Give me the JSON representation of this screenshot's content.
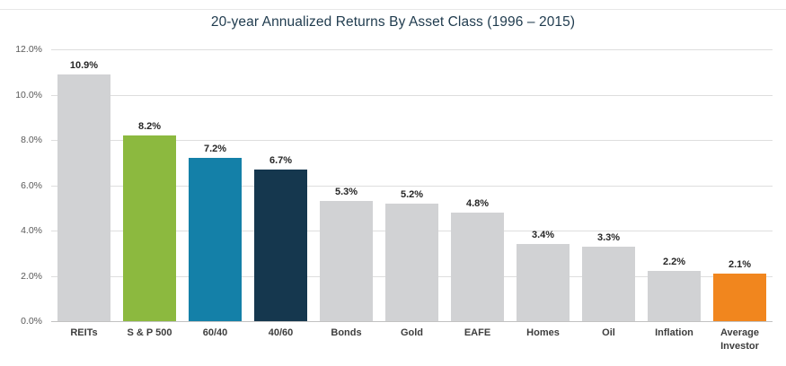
{
  "chart_data": {
    "type": "bar",
    "title": "20-year Annualized Returns By Asset Class (1996 – 2015)",
    "categories": [
      "REITs",
      "S & P 500",
      "60/40",
      "40/60",
      "Bonds",
      "Gold",
      "EAFE",
      "Homes",
      "Oil",
      "Inflation",
      "Average Investor"
    ],
    "values": [
      10.9,
      8.2,
      7.2,
      6.7,
      5.3,
      5.2,
      4.8,
      3.4,
      3.3,
      2.2,
      2.1
    ],
    "value_labels": [
      "10.9%",
      "8.2%",
      "7.2%",
      "6.7%",
      "5.3%",
      "5.2%",
      "4.8%",
      "3.4%",
      "3.3%",
      "2.2%",
      "2.1%"
    ],
    "bar_color_names": [
      "gray",
      "green",
      "blue",
      "navy",
      "gray",
      "gray",
      "gray",
      "gray",
      "gray",
      "gray",
      "orange"
    ],
    "xlabel": "",
    "ylabel": "",
    "ylim": [
      0,
      12
    ],
    "ytick_values": [
      0,
      2,
      4,
      6,
      8,
      10,
      12
    ],
    "ytick_labels": [
      "0.0%",
      "2.0%",
      "4.0%",
      "6.0%",
      "8.0%",
      "10.0%",
      "12.0%"
    ],
    "grid": true,
    "legend": "none"
  },
  "palette": {
    "gray": "#d1d2d4",
    "green": "#8cb93f",
    "blue": "#1480a8",
    "navy": "#15374e",
    "orange": "#f1861e"
  }
}
